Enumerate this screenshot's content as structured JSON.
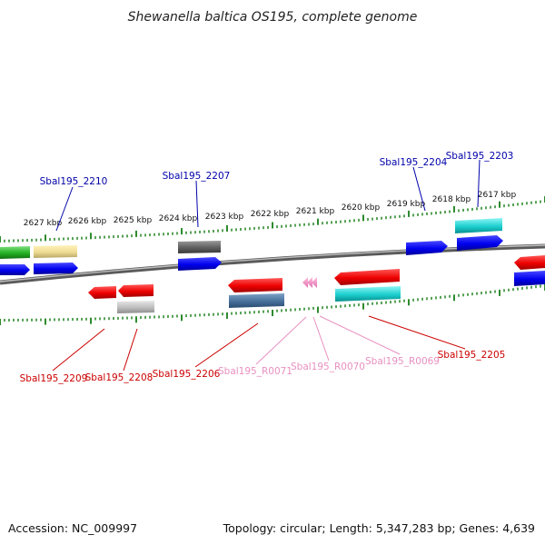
{
  "title": "Shewanella baltica OS195, complete genome",
  "footer": {
    "accession": "Accession: NC_009997",
    "summary": "Topology: circular; Length: 5,347,283 bp; Genes: 4,639"
  },
  "ruler": {
    "tick_color": "#2e8b2e",
    "ticks_kbp": [
      "2627 kbp",
      "2626 kbp",
      "2625 kbp",
      "2624 kbp",
      "2623 kbp",
      "2622 kbp",
      "2621 kbp",
      "2620 kbp",
      "2619 kbp",
      "2618 kbp",
      "2617 kbp"
    ]
  },
  "colors": {
    "forward_label": "#0000aa",
    "reverse_label": "#cc0000",
    "rna_label": "#e890c0",
    "backbone": "#808080"
  },
  "labels": [
    {
      "name": "Sbal195_2210",
      "strand": "forward",
      "color": "#0000aa"
    },
    {
      "name": "Sbal195_2207",
      "strand": "forward",
      "color": "#0000aa"
    },
    {
      "name": "Sbal195_2204",
      "strand": "forward",
      "color": "#0000aa"
    },
    {
      "name": "Sbal195_2203",
      "strand": "forward",
      "color": "#0000aa"
    },
    {
      "name": "Sbal195_2209",
      "strand": "reverse",
      "color": "#cc0000"
    },
    {
      "name": "Sbal195_2208",
      "strand": "reverse",
      "color": "#cc0000"
    },
    {
      "name": "Sbal195_2206",
      "strand": "reverse",
      "color": "#cc0000"
    },
    {
      "name": "Sbal195_R0071",
      "strand": "reverse",
      "color": "#e890c0"
    },
    {
      "name": "Sbal195_R0070",
      "strand": "reverse",
      "color": "#e890c0"
    },
    {
      "name": "Sbal195_R0069",
      "strand": "reverse",
      "color": "#e890c0"
    },
    {
      "name": "Sbal195_2205",
      "strand": "reverse",
      "color": "#cc0000"
    }
  ]
}
